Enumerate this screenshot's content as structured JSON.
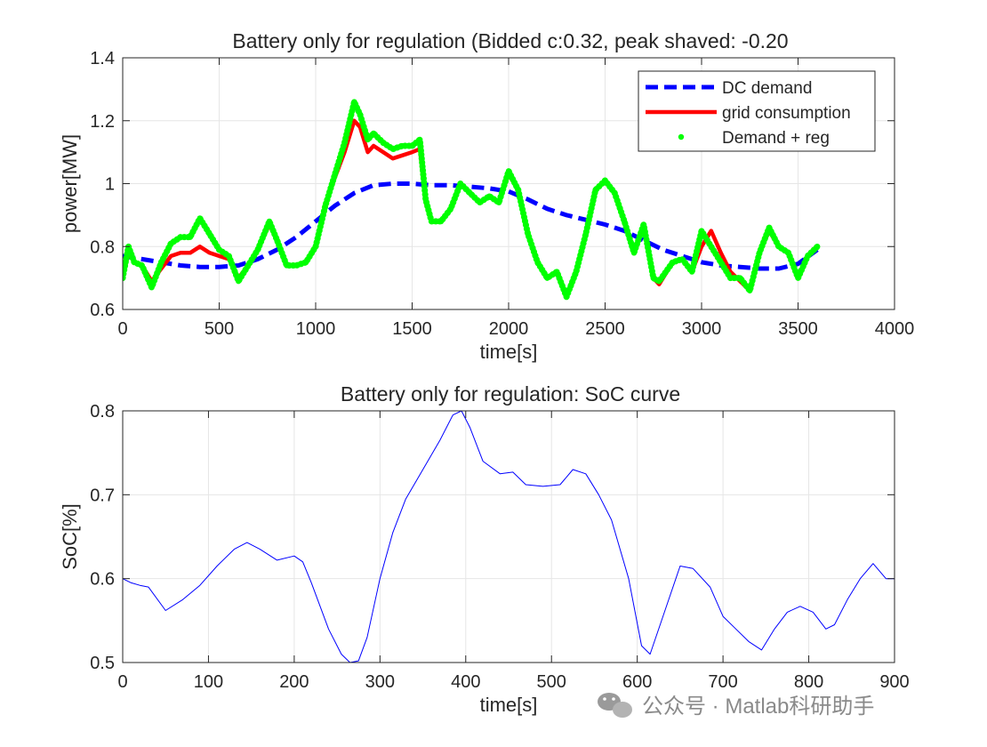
{
  "chart_data": [
    {
      "type": "line",
      "title": "Battery only for regulation (Bidded c:0.32, peak shaved: -0.20",
      "xlabel": "time[s]",
      "ylabel": "power[MW]",
      "xlim": [
        0,
        4000
      ],
      "ylim": [
        0.6,
        1.4
      ],
      "xticks": [
        0,
        500,
        1000,
        1500,
        2000,
        2500,
        3000,
        3500,
        4000
      ],
      "yticks": [
        0.6,
        0.8,
        1,
        1.2,
        1.4
      ],
      "xtick_labels": [
        "0",
        "500",
        "1000",
        "1500",
        "2000",
        "2500",
        "3000",
        "3500",
        "4000"
      ],
      "ytick_labels": [
        "0.6",
        "0.8",
        "1",
        "1.2",
        "1.4"
      ],
      "grid": true,
      "legend_position": "top-right",
      "series": [
        {
          "name": "DC demand",
          "style": "dashed",
          "color": "#0000ff",
          "x": [
            0,
            100,
            200,
            300,
            400,
            500,
            600,
            700,
            800,
            900,
            1000,
            1100,
            1200,
            1300,
            1400,
            1500,
            1600,
            1700,
            1800,
            1900,
            2000,
            2100,
            2200,
            2300,
            2400,
            2500,
            2600,
            2700,
            2800,
            2900,
            3000,
            3100,
            3200,
            3300,
            3400,
            3500,
            3600
          ],
          "y": [
            0.77,
            0.76,
            0.75,
            0.74,
            0.735,
            0.735,
            0.74,
            0.76,
            0.79,
            0.83,
            0.88,
            0.93,
            0.97,
            0.995,
            1.0,
            1.0,
            0.995,
            0.995,
            0.99,
            0.985,
            0.975,
            0.95,
            0.92,
            0.9,
            0.885,
            0.87,
            0.85,
            0.82,
            0.79,
            0.77,
            0.75,
            0.74,
            0.735,
            0.73,
            0.73,
            0.745,
            0.79
          ]
        },
        {
          "name": "grid consumption",
          "style": "solid",
          "color": "#ff0000",
          "x": [
            0,
            30,
            60,
            100,
            150,
            200,
            250,
            300,
            350,
            400,
            450,
            500,
            550,
            600,
            650,
            700,
            760,
            800,
            850,
            900,
            950,
            1000,
            1050,
            1100,
            1150,
            1200,
            1230,
            1270,
            1300,
            1350,
            1400,
            1450,
            1500,
            1540,
            1570,
            1600,
            1650,
            1700,
            1750,
            1800,
            1850,
            1900,
            1950,
            2000,
            2050,
            2100,
            2150,
            2200,
            2250,
            2300,
            2350,
            2400,
            2450,
            2500,
            2550,
            2600,
            2650,
            2700,
            2750,
            2780,
            2850,
            2900,
            2950,
            3000,
            3050,
            3100,
            3150,
            3200,
            3250,
            3300,
            3350,
            3400,
            3450,
            3500,
            3550,
            3600
          ],
          "y": [
            0.7,
            0.78,
            0.75,
            0.74,
            0.69,
            0.73,
            0.77,
            0.78,
            0.78,
            0.8,
            0.78,
            0.77,
            0.76,
            0.7,
            0.74,
            0.79,
            0.87,
            0.82,
            0.74,
            0.74,
            0.75,
            0.8,
            0.93,
            1.02,
            1.1,
            1.2,
            1.18,
            1.1,
            1.12,
            1.1,
            1.08,
            1.09,
            1.1,
            1.11,
            0.94,
            0.88,
            0.88,
            0.92,
            1.0,
            0.97,
            0.94,
            0.96,
            0.94,
            1.03,
            0.98,
            0.84,
            0.75,
            0.7,
            0.72,
            0.64,
            0.72,
            0.84,
            0.98,
            1.01,
            0.97,
            0.88,
            0.78,
            0.87,
            0.7,
            0.68,
            0.75,
            0.76,
            0.72,
            0.8,
            0.85,
            0.78,
            0.72,
            0.69,
            0.66,
            0.78,
            0.85,
            0.8,
            0.78,
            0.7,
            0.77,
            0.8
          ]
        },
        {
          "name": "Demand + reg",
          "style": "markers",
          "color": "#00ff00",
          "x": [
            0,
            30,
            60,
            100,
            150,
            200,
            250,
            300,
            350,
            400,
            450,
            500,
            550,
            600,
            650,
            700,
            760,
            800,
            850,
            900,
            950,
            1000,
            1050,
            1100,
            1150,
            1200,
            1230,
            1270,
            1300,
            1350,
            1400,
            1450,
            1500,
            1540,
            1570,
            1600,
            1650,
            1700,
            1750,
            1800,
            1850,
            1900,
            1950,
            2000,
            2050,
            2100,
            2150,
            2200,
            2250,
            2300,
            2350,
            2400,
            2450,
            2500,
            2550,
            2600,
            2650,
            2700,
            2750,
            2780,
            2850,
            2900,
            2950,
            3000,
            3050,
            3100,
            3150,
            3200,
            3250,
            3300,
            3350,
            3400,
            3450,
            3500,
            3550,
            3600
          ],
          "y": [
            0.7,
            0.8,
            0.75,
            0.74,
            0.67,
            0.75,
            0.81,
            0.83,
            0.83,
            0.89,
            0.84,
            0.79,
            0.77,
            0.69,
            0.74,
            0.79,
            0.88,
            0.82,
            0.74,
            0.74,
            0.75,
            0.8,
            0.93,
            1.03,
            1.13,
            1.26,
            1.22,
            1.14,
            1.16,
            1.13,
            1.11,
            1.12,
            1.12,
            1.14,
            0.95,
            0.88,
            0.88,
            0.92,
            1.0,
            0.97,
            0.94,
            0.96,
            0.94,
            1.04,
            0.98,
            0.84,
            0.75,
            0.7,
            0.72,
            0.64,
            0.72,
            0.84,
            0.98,
            1.01,
            0.97,
            0.88,
            0.78,
            0.87,
            0.7,
            0.69,
            0.75,
            0.76,
            0.72,
            0.85,
            0.8,
            0.75,
            0.7,
            0.7,
            0.66,
            0.78,
            0.86,
            0.8,
            0.78,
            0.7,
            0.77,
            0.8
          ]
        }
      ]
    },
    {
      "type": "line",
      "title": "Battery only for regulation: SoC curve",
      "xlabel": "time[s]",
      "ylabel": "SoC[%]",
      "xlim": [
        0,
        900
      ],
      "ylim": [
        0.5,
        0.8
      ],
      "xticks": [
        0,
        100,
        200,
        300,
        400,
        500,
        600,
        700,
        800,
        900
      ],
      "yticks": [
        0.5,
        0.6,
        0.7,
        0.8
      ],
      "xtick_labels": [
        "0",
        "100",
        "200",
        "300",
        "400",
        "500",
        "600",
        "700",
        "800",
        "900"
      ],
      "ytick_labels": [
        "0.5",
        "0.6",
        "0.7",
        "0.8"
      ],
      "grid": true,
      "series": [
        {
          "color": "#0000ff",
          "x": [
            0,
            10,
            20,
            30,
            50,
            70,
            90,
            110,
            130,
            145,
            160,
            180,
            200,
            210,
            220,
            240,
            255,
            265,
            275,
            285,
            300,
            315,
            330,
            350,
            370,
            385,
            395,
            405,
            420,
            440,
            455,
            470,
            490,
            510,
            525,
            540,
            555,
            570,
            590,
            605,
            615,
            630,
            650,
            665,
            685,
            700,
            715,
            730,
            745,
            760,
            775,
            790,
            805,
            820,
            830,
            845,
            860,
            875,
            890,
            900
          ],
          "y": [
            0.6,
            0.595,
            0.592,
            0.59,
            0.562,
            0.575,
            0.592,
            0.615,
            0.635,
            0.643,
            0.635,
            0.622,
            0.627,
            0.62,
            0.595,
            0.54,
            0.51,
            0.5,
            0.502,
            0.53,
            0.6,
            0.655,
            0.695,
            0.73,
            0.765,
            0.795,
            0.8,
            0.78,
            0.74,
            0.725,
            0.727,
            0.712,
            0.71,
            0.712,
            0.73,
            0.725,
            0.7,
            0.67,
            0.6,
            0.52,
            0.51,
            0.555,
            0.615,
            0.612,
            0.59,
            0.555,
            0.54,
            0.525,
            0.515,
            0.54,
            0.56,
            0.567,
            0.56,
            0.54,
            0.545,
            0.575,
            0.6,
            0.618,
            0.6,
            0.6
          ]
        }
      ]
    }
  ],
  "watermark": {
    "text": "公众号 · Matlab科研助手",
    "icon": "wechat-icon"
  }
}
